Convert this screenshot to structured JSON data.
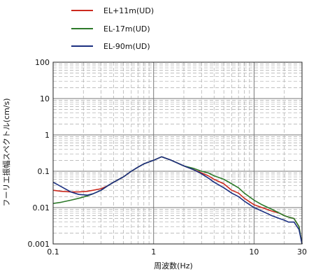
{
  "chart_data": {
    "type": "line",
    "xlabel": "周波数(Hz)",
    "ylabel": "フーリエ振幅スペクトル(cm/s)",
    "x_scale": "log",
    "y_scale": "log",
    "xlim": [
      0.1,
      30
    ],
    "ylim": [
      0.001,
      100
    ],
    "grid": true,
    "legend_position": "top-left",
    "x_tick_labels": [
      "0.1",
      "1",
      "10",
      "30"
    ],
    "y_tick_labels": [
      "0.001",
      "0.01",
      "0.1",
      "1",
      "10",
      "100"
    ],
    "series": [
      {
        "name": "EL+11m(UD)",
        "color": "#cc2a1e",
        "x": [
          0.1,
          0.12,
          0.15,
          0.18,
          0.22,
          0.25,
          0.3,
          0.35,
          0.4,
          0.5,
          0.6,
          0.7,
          0.8,
          1.0,
          1.2,
          1.5,
          1.8,
          2.0,
          2.5,
          3.0,
          3.5,
          4.0,
          5.0,
          6.0,
          7.0,
          8.0,
          10.0,
          12.0,
          15.0,
          18.0,
          20.0,
          22.0,
          25.0,
          28.0,
          30.0
        ],
        "y": [
          0.03,
          0.028,
          0.027,
          0.027,
          0.028,
          0.03,
          0.033,
          0.04,
          0.05,
          0.07,
          0.1,
          0.13,
          0.16,
          0.2,
          0.25,
          0.2,
          0.16,
          0.14,
          0.11,
          0.09,
          0.075,
          0.06,
          0.045,
          0.03,
          0.025,
          0.018,
          0.012,
          0.01,
          0.008,
          0.007,
          0.006,
          0.0055,
          0.005,
          0.003,
          0.001
        ]
      },
      {
        "name": "EL-17m(UD)",
        "color": "#2d7a2a",
        "x": [
          0.1,
          0.12,
          0.15,
          0.18,
          0.22,
          0.25,
          0.3,
          0.35,
          0.4,
          0.5,
          0.6,
          0.7,
          0.8,
          1.0,
          1.2,
          1.5,
          1.8,
          2.0,
          2.5,
          3.0,
          3.5,
          4.0,
          5.0,
          6.0,
          7.0,
          8.0,
          10.0,
          12.0,
          15.0,
          18.0,
          20.0,
          22.0,
          25.0,
          28.0,
          30.0
        ],
        "y": [
          0.013,
          0.014,
          0.016,
          0.018,
          0.021,
          0.024,
          0.03,
          0.04,
          0.05,
          0.07,
          0.1,
          0.13,
          0.16,
          0.2,
          0.25,
          0.2,
          0.16,
          0.14,
          0.12,
          0.1,
          0.09,
          0.075,
          0.06,
          0.045,
          0.035,
          0.025,
          0.016,
          0.012,
          0.009,
          0.007,
          0.006,
          0.0055,
          0.005,
          0.003,
          0.001
        ]
      },
      {
        "name": "EL-90m(UD)",
        "color": "#1b2f80",
        "x": [
          0.1,
          0.12,
          0.15,
          0.18,
          0.22,
          0.25,
          0.3,
          0.35,
          0.4,
          0.5,
          0.6,
          0.7,
          0.8,
          1.0,
          1.2,
          1.5,
          1.8,
          2.0,
          2.5,
          3.0,
          3.5,
          4.0,
          5.0,
          6.0,
          7.0,
          8.0,
          10.0,
          12.0,
          15.0,
          18.0,
          20.0,
          22.0,
          25.0,
          28.0,
          30.0
        ],
        "y": [
          0.05,
          0.038,
          0.027,
          0.023,
          0.022,
          0.024,
          0.03,
          0.04,
          0.05,
          0.07,
          0.1,
          0.13,
          0.16,
          0.2,
          0.25,
          0.2,
          0.16,
          0.14,
          0.11,
          0.085,
          0.065,
          0.05,
          0.035,
          0.025,
          0.02,
          0.015,
          0.01,
          0.008,
          0.006,
          0.005,
          0.0045,
          0.004,
          0.004,
          0.0025,
          0.001
        ]
      }
    ]
  }
}
